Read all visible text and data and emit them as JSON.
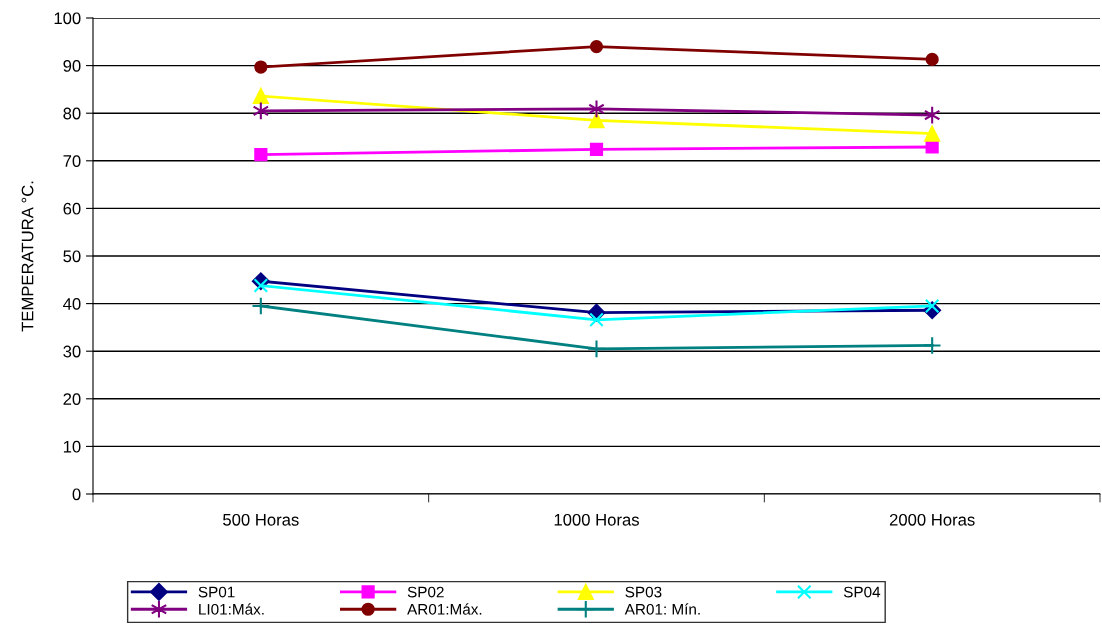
{
  "chart_data": {
    "type": "line",
    "ylabel": "TEMPERATURA °C.",
    "categories": [
      "500 Horas",
      "1000 Horas",
      "2000 Horas"
    ],
    "ylim": [
      0,
      100
    ],
    "yticks": [
      0,
      10,
      20,
      30,
      40,
      50,
      60,
      70,
      80,
      90,
      100
    ],
    "grid": "y",
    "legend": "bottom",
    "series": [
      {
        "name": "SP01",
        "color": "#000080",
        "marker": "diamond",
        "values": [
          44.7,
          38.1,
          38.6
        ]
      },
      {
        "name": "SP02",
        "color": "#ff00ff",
        "marker": "square",
        "values": [
          71.3,
          72.4,
          72.9
        ]
      },
      {
        "name": "SP03",
        "color": "#ffff00",
        "marker": "triangle",
        "values": [
          83.6,
          78.5,
          75.7
        ]
      },
      {
        "name": "SP04",
        "color": "#00ffff",
        "marker": "x",
        "values": [
          43.8,
          36.6,
          39.5
        ]
      },
      {
        "name": "LI01:Máx.",
        "color": "#800080",
        "marker": "cross",
        "values": [
          80.5,
          80.9,
          79.6
        ]
      },
      {
        "name": "AR01:Máx.",
        "color": "#800000",
        "marker": "circle",
        "values": [
          89.7,
          94.0,
          91.3
        ]
      },
      {
        "name": "AR01: Mín.",
        "color": "#008080",
        "marker": "plus",
        "values": [
          39.5,
          30.5,
          31.2
        ]
      }
    ]
  }
}
